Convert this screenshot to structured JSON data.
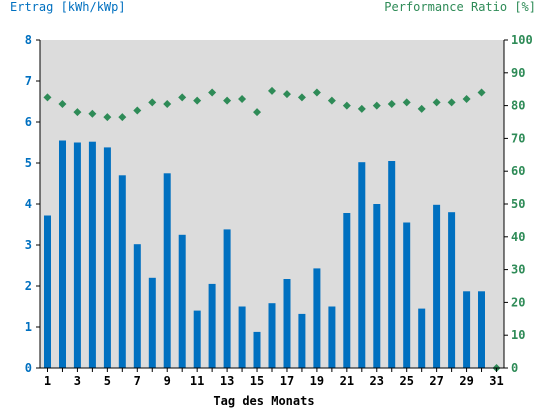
{
  "chart_data": {
    "type": "bar",
    "left_axis_label": "Ertrag [kWh/kWp]",
    "right_axis_label": "Performance Ratio [%]",
    "xlabel": "Tag des Monats",
    "ylim_left": [
      0,
      8
    ],
    "ylim_right": [
      0,
      100
    ],
    "left_ticks": [
      "0",
      "1",
      "2",
      "3",
      "4",
      "5",
      "6",
      "7",
      "8"
    ],
    "right_ticks": [
      "0",
      "10",
      "20",
      "30",
      "40",
      "50",
      "60",
      "70",
      "80",
      "90",
      "100"
    ],
    "x_tick_labels": [
      "1",
      "3",
      "5",
      "7",
      "9",
      "11",
      "13",
      "15",
      "17",
      "19",
      "21",
      "23",
      "25",
      "27",
      "29",
      "31"
    ],
    "days": [
      1,
      2,
      3,
      4,
      5,
      6,
      7,
      8,
      9,
      10,
      11,
      12,
      13,
      14,
      15,
      16,
      17,
      18,
      19,
      20,
      21,
      22,
      23,
      24,
      25,
      26,
      27,
      28,
      29,
      30,
      31
    ],
    "series": [
      {
        "kind": "bar",
        "axis": "left",
        "color": "#0070c0",
        "values": [
          3.72,
          5.55,
          5.5,
          5.52,
          5.38,
          4.7,
          3.02,
          2.2,
          4.75,
          3.25,
          1.4,
          2.05,
          3.38,
          1.5,
          0.88,
          1.58,
          2.17,
          1.32,
          2.43,
          1.5,
          3.78,
          5.02,
          4.0,
          5.05,
          3.55,
          1.45,
          3.98,
          3.8,
          1.87,
          1.87,
          0
        ]
      },
      {
        "kind": "scatter",
        "axis": "right",
        "color": "#2e8b57",
        "values": [
          82.5,
          80.5,
          78,
          77.5,
          76.5,
          76.5,
          78.5,
          81,
          80.5,
          82.5,
          81.5,
          84,
          81.5,
          82,
          78,
          84.5,
          83.5,
          82.5,
          84,
          81.5,
          80,
          79,
          80,
          80.5,
          81,
          79,
          81,
          81,
          82,
          84,
          0
        ]
      }
    ],
    "grid": false,
    "colors": {
      "plot_background": "#dcdcdc",
      "left_axis": "#0070c0",
      "right_axis": "#2e8b57",
      "axis_line": "#000000"
    }
  }
}
